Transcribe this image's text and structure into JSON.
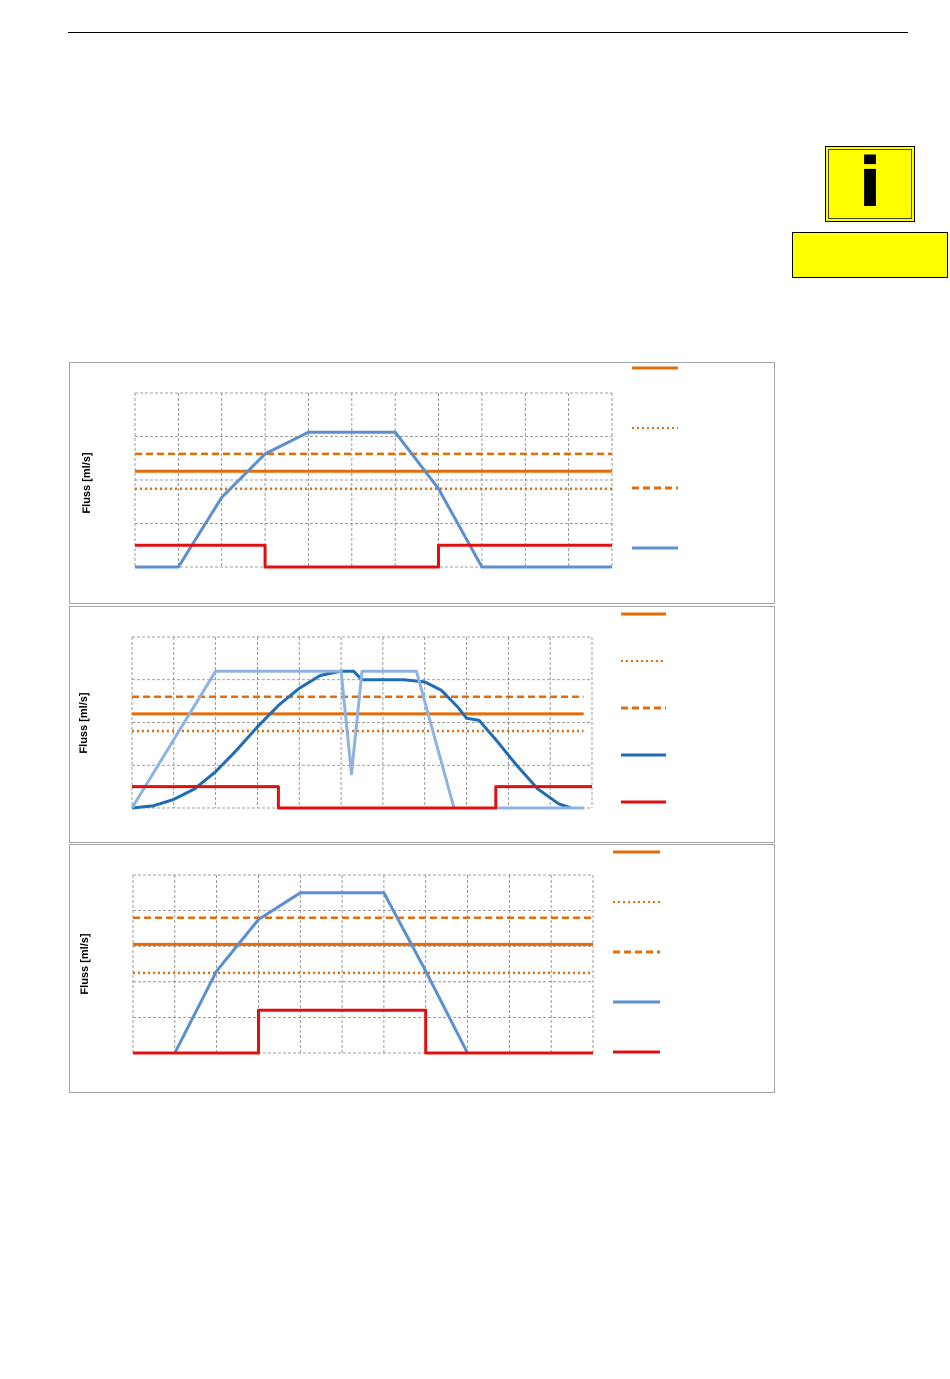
{
  "info_badge": {
    "icon": "info-icon",
    "glyph": "i",
    "color": "#ffff00"
  },
  "colors": {
    "orange": "#e46c0a",
    "blue": "#5b8fce",
    "light_blue": "#8db3e2",
    "dark_blue": "#1f6db5",
    "red": "#e01010",
    "grid": "#808080"
  },
  "chart_data": [
    {
      "type": "line",
      "ylabel": "Fluss [ml/s]",
      "xlim": [
        0,
        11
      ],
      "ylim": [
        0,
        4
      ],
      "grid": true,
      "legend_position": "right",
      "series": [
        {
          "style": "dashed",
          "color": "#e46c0a",
          "points": [
            [
              0,
              2.6
            ],
            [
              11,
              2.6
            ]
          ]
        },
        {
          "style": "solid",
          "color": "#e46c0a",
          "points": [
            [
              0,
              2.2
            ],
            [
              11,
              2.2
            ]
          ]
        },
        {
          "style": "dotted",
          "color": "#e46c0a",
          "points": [
            [
              0,
              1.8
            ],
            [
              11,
              1.8
            ]
          ]
        },
        {
          "style": "solid",
          "color": "#5b8fce",
          "points": [
            [
              0,
              0
            ],
            [
              1,
              0
            ],
            [
              2,
              1.6
            ],
            [
              3,
              2.6
            ],
            [
              4,
              3.1
            ],
            [
              6,
              3.1
            ],
            [
              7,
              1.8
            ],
            [
              8,
              0
            ],
            [
              11,
              0
            ]
          ]
        },
        {
          "style": "solid",
          "color": "#e01010",
          "step": true,
          "points": [
            [
              0,
              0.5
            ],
            [
              3,
              0.5
            ],
            [
              3,
              0
            ],
            [
              7,
              0
            ],
            [
              7,
              0.5
            ],
            [
              11,
              0.5
            ]
          ]
        }
      ],
      "legend": [
        {
          "style": "solid",
          "color": "#e46c0a"
        },
        {
          "style": "dotted",
          "color": "#e46c0a"
        },
        {
          "style": "dashed",
          "color": "#e46c0a"
        },
        {
          "style": "solid",
          "color": "#5b8fce"
        }
      ]
    },
    {
      "type": "line",
      "ylabel": "Fluss [ml/s]",
      "xlim": [
        0,
        11
      ],
      "ylim": [
        0,
        4
      ],
      "grid": true,
      "legend_position": "right",
      "series": [
        {
          "style": "dashed",
          "color": "#e46c0a",
          "points": [
            [
              0,
              2.6
            ],
            [
              10.8,
              2.6
            ]
          ]
        },
        {
          "style": "solid",
          "color": "#e46c0a",
          "points": [
            [
              0,
              2.2
            ],
            [
              10.8,
              2.2
            ]
          ]
        },
        {
          "style": "dotted",
          "color": "#e46c0a",
          "points": [
            [
              0,
              1.8
            ],
            [
              10.8,
              1.8
            ]
          ]
        },
        {
          "style": "solid",
          "color": "#1f6db5",
          "points": [
            [
              0,
              0
            ],
            [
              0.5,
              0.05
            ],
            [
              1,
              0.2
            ],
            [
              1.5,
              0.45
            ],
            [
              2,
              0.85
            ],
            [
              2.5,
              1.35
            ],
            [
              3,
              1.9
            ],
            [
              3.5,
              2.4
            ],
            [
              4,
              2.8
            ],
            [
              4.5,
              3.1
            ],
            [
              5,
              3.2
            ],
            [
              5.3,
              3.2
            ],
            [
              5.5,
              3.0
            ],
            [
              6.5,
              3.0
            ],
            [
              7,
              2.95
            ],
            [
              7.4,
              2.75
            ],
            [
              7.8,
              2.35
            ],
            [
              8.0,
              2.1
            ],
            [
              8.3,
              2.05
            ],
            [
              8.7,
              1.6
            ],
            [
              9.2,
              1.0
            ],
            [
              9.7,
              0.45
            ],
            [
              10.2,
              0.1
            ],
            [
              10.5,
              0.0
            ],
            [
              10.8,
              0.0
            ]
          ]
        },
        {
          "style": "solid",
          "color": "#8db3e2",
          "points": [
            [
              0,
              0
            ],
            [
              2,
              3.2
            ],
            [
              5,
              3.2
            ],
            [
              5.25,
              0.8
            ],
            [
              5.5,
              3.2
            ],
            [
              6.8,
              3.2
            ],
            [
              7.7,
              0
            ],
            [
              10.8,
              0
            ]
          ]
        },
        {
          "style": "solid",
          "color": "#e01010",
          "step": true,
          "points": [
            [
              0,
              0.5
            ],
            [
              3.5,
              0.5
            ],
            [
              3.5,
              0
            ],
            [
              8.7,
              0
            ],
            [
              8.7,
              0.5
            ],
            [
              11,
              0.5
            ]
          ]
        }
      ],
      "legend": [
        {
          "style": "solid",
          "color": "#e46c0a"
        },
        {
          "style": "dotted",
          "color": "#e46c0a"
        },
        {
          "style": "dashed",
          "color": "#e46c0a"
        },
        {
          "style": "solid",
          "color": "#1f6db5"
        },
        {
          "style": "solid",
          "color": "#e01010"
        }
      ]
    },
    {
      "type": "line",
      "ylabel": "Fluss [ml/s]",
      "xlim": [
        0,
        11
      ],
      "ylim": [
        0,
        5
      ],
      "grid": true,
      "legend_position": "right",
      "series": [
        {
          "style": "dashed",
          "color": "#e46c0a",
          "points": [
            [
              0,
              3.8
            ],
            [
              11,
              3.8
            ]
          ]
        },
        {
          "style": "solid",
          "color": "#e46c0a",
          "points": [
            [
              0,
              3.05
            ],
            [
              11,
              3.05
            ]
          ]
        },
        {
          "style": "dotted",
          "color": "#e46c0a",
          "points": [
            [
              0,
              2.25
            ],
            [
              11,
              2.25
            ]
          ]
        },
        {
          "style": "solid",
          "color": "#5b8fce",
          "points": [
            [
              0,
              0
            ],
            [
              1,
              0
            ],
            [
              2,
              2.3
            ],
            [
              3,
              3.75
            ],
            [
              4,
              4.5
            ],
            [
              6,
              4.5
            ],
            [
              7,
              2.3
            ],
            [
              8,
              0
            ],
            [
              11,
              0
            ]
          ]
        },
        {
          "style": "solid",
          "color": "#e01010",
          "step": true,
          "points": [
            [
              0,
              0
            ],
            [
              3,
              0
            ],
            [
              3,
              1.2
            ],
            [
              7,
              1.2
            ],
            [
              7,
              0
            ],
            [
              11,
              0
            ]
          ]
        }
      ],
      "legend": [
        {
          "style": "solid",
          "color": "#e46c0a"
        },
        {
          "style": "dotted",
          "color": "#e46c0a"
        },
        {
          "style": "dashed",
          "color": "#e46c0a"
        },
        {
          "style": "solid",
          "color": "#5b8fce"
        },
        {
          "style": "solid",
          "color": "#e01010"
        }
      ]
    }
  ]
}
